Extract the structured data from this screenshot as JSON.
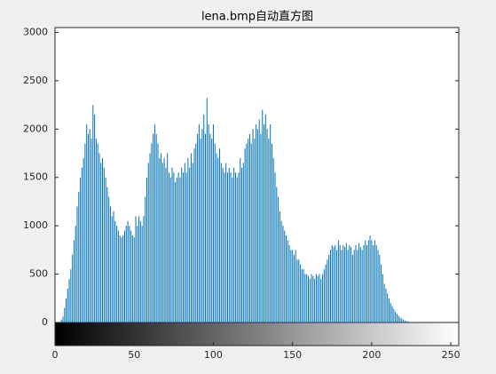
{
  "chart_data": {
    "type": "stem",
    "title": "lena.bmp自动直方图",
    "color": "#0072bd",
    "x": [
      0,
      1,
      2,
      3,
      4,
      5,
      6,
      7,
      8,
      9,
      10,
      11,
      12,
      13,
      14,
      15,
      16,
      17,
      18,
      19,
      20,
      21,
      22,
      23,
      24,
      25,
      26,
      27,
      28,
      29,
      30,
      31,
      32,
      33,
      34,
      35,
      36,
      37,
      38,
      39,
      40,
      41,
      42,
      43,
      44,
      45,
      46,
      47,
      48,
      49,
      50,
      51,
      52,
      53,
      54,
      55,
      56,
      57,
      58,
      59,
      60,
      61,
      62,
      63,
      64,
      65,
      66,
      67,
      68,
      69,
      70,
      71,
      72,
      73,
      74,
      75,
      76,
      77,
      78,
      79,
      80,
      81,
      82,
      83,
      84,
      85,
      86,
      87,
      88,
      89,
      90,
      91,
      92,
      93,
      94,
      95,
      96,
      97,
      98,
      99,
      100,
      101,
      102,
      103,
      104,
      105,
      106,
      107,
      108,
      109,
      110,
      111,
      112,
      113,
      114,
      115,
      116,
      117,
      118,
      119,
      120,
      121,
      122,
      123,
      124,
      125,
      126,
      127,
      128,
      129,
      130,
      131,
      132,
      133,
      134,
      135,
      136,
      137,
      138,
      139,
      140,
      141,
      142,
      143,
      144,
      145,
      146,
      147,
      148,
      149,
      150,
      151,
      152,
      153,
      154,
      155,
      156,
      157,
      158,
      159,
      160,
      161,
      162,
      163,
      164,
      165,
      166,
      167,
      168,
      169,
      170,
      171,
      172,
      173,
      174,
      175,
      176,
      177,
      178,
      179,
      180,
      181,
      182,
      183,
      184,
      185,
      186,
      187,
      188,
      189,
      190,
      191,
      192,
      193,
      194,
      195,
      196,
      197,
      198,
      199,
      200,
      201,
      202,
      203,
      204,
      205,
      206,
      207,
      208,
      209,
      210,
      211,
      212,
      213,
      214,
      215,
      216,
      217,
      218,
      219,
      220,
      221,
      222,
      223,
      224,
      225,
      226,
      227,
      228,
      229,
      230,
      231,
      232,
      233,
      234,
      235,
      236,
      237,
      238,
      239,
      240,
      241,
      242,
      243,
      244,
      245,
      246,
      247,
      248,
      249,
      250,
      251,
      252,
      253,
      254,
      255
    ],
    "values": [
      0,
      0,
      0,
      0,
      30,
      60,
      150,
      250,
      350,
      450,
      550,
      700,
      850,
      1000,
      1200,
      1350,
      1500,
      1600,
      1700,
      1850,
      2050,
      1950,
      2000,
      1900,
      2250,
      2150,
      1900,
      1850,
      1750,
      1650,
      1700,
      1600,
      1500,
      1400,
      1300,
      1200,
      1100,
      1150,
      1050,
      1000,
      950,
      900,
      880,
      900,
      950,
      1000,
      1050,
      1000,
      950,
      900,
      880,
      1100,
      1000,
      1100,
      1050,
      1000,
      1100,
      1300,
      1500,
      1650,
      1750,
      1850,
      1950,
      2050,
      1950,
      1850,
      1700,
      1750,
      1650,
      1700,
      1600,
      1750,
      1550,
      1500,
      1600,
      1550,
      1450,
      1500,
      1550,
      1500,
      1600,
      1550,
      1650,
      1550,
      1700,
      1600,
      1750,
      1650,
      1800,
      1850,
      1950,
      2050,
      1900,
      2000,
      2150,
      1950,
      2320,
      2050,
      1950,
      1900,
      2050,
      1850,
      1750,
      1700,
      1800,
      1650,
      1600,
      1550,
      1650,
      1550,
      1600,
      1550,
      1500,
      1600,
      1550,
      1500,
      1550,
      1700,
      1600,
      1650,
      1800,
      1850,
      1900,
      1950,
      1850,
      2000,
      1900,
      2050,
      2000,
      2100,
      1950,
      2200,
      2050,
      2150,
      2000,
      1900,
      2050,
      1850,
      1700,
      1550,
      1400,
      1300,
      1150,
      1050,
      1000,
      950,
      900,
      850,
      800,
      750,
      750,
      700,
      750,
      650,
      650,
      600,
      550,
      550,
      500,
      500,
      480,
      450,
      500,
      480,
      450,
      500,
      480,
      500,
      450,
      500,
      550,
      600,
      650,
      700,
      750,
      800,
      780,
      800,
      750,
      850,
      800,
      750,
      800,
      780,
      820,
      750,
      800,
      780,
      700,
      750,
      800,
      750,
      820,
      780,
      750,
      800,
      850,
      800,
      850,
      900,
      850,
      800,
      850,
      800,
      750,
      700,
      600,
      500,
      400,
      350,
      300,
      250,
      200,
      170,
      140,
      110,
      90,
      70,
      50,
      40,
      30,
      20,
      15,
      10,
      5,
      3,
      0,
      0,
      0,
      0,
      0,
      0,
      0,
      0,
      0,
      0,
      0,
      0,
      0,
      0,
      0,
      0,
      0,
      0,
      0,
      0,
      0,
      0,
      0,
      0,
      0,
      0,
      0,
      0,
      0,
      0
    ],
    "xlim": [
      0,
      255
    ],
    "xticks": [
      0,
      50,
      100,
      150,
      200,
      250
    ],
    "ylim": [
      0,
      3050
    ],
    "yticks": [
      0,
      500,
      1000,
      1500,
      2000,
      2500,
      3000
    ]
  }
}
